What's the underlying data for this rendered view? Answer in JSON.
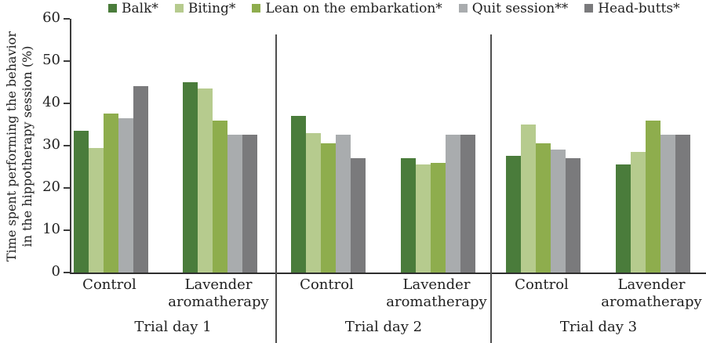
{
  "chart_data": {
    "type": "bar",
    "title": "",
    "ylabel_lines": [
      "Time spent performing the behavior",
      "in the hippotherapy session (%)"
    ],
    "ylim": [
      0,
      60
    ],
    "yticks": [
      0,
      10,
      20,
      30,
      40,
      50,
      60
    ],
    "grid": false,
    "legend_position": "top",
    "series": [
      {
        "name": "Balk*",
        "color": "#4a7c3b"
      },
      {
        "name": "Biting*",
        "color": "#b6cb8e"
      },
      {
        "name": "Lean on the embarkation*",
        "color": "#8ead4d"
      },
      {
        "name": "Quit session**",
        "color": "#a9acae"
      },
      {
        "name": "Head-butts*",
        "color": "#7a7a7c"
      }
    ],
    "panels": [
      {
        "label": "Trial day 1",
        "groups": [
          {
            "label": "Control",
            "values": [
              33.5,
              29.5,
              37.5,
              36.5,
              44
            ]
          },
          {
            "label": "Lavender aromatherapy",
            "values": [
              45,
              43.5,
              36,
              32.5,
              32.5
            ]
          }
        ]
      },
      {
        "label": "Trial day 2",
        "groups": [
          {
            "label": "Control",
            "values": [
              37,
              33,
              30.5,
              32.5,
              27
            ]
          },
          {
            "label": "Lavender aromatherapy",
            "values": [
              27,
              25.5,
              26,
              32.5,
              32.5
            ]
          }
        ]
      },
      {
        "label": "Trial day 3",
        "groups": [
          {
            "label": "Control",
            "values": [
              27.5,
              35,
              30.5,
              29,
              27
            ]
          },
          {
            "label": "Lavender aromatherapy",
            "values": [
              25.5,
              28.5,
              36,
              32.5,
              32.5
            ]
          }
        ]
      }
    ]
  }
}
